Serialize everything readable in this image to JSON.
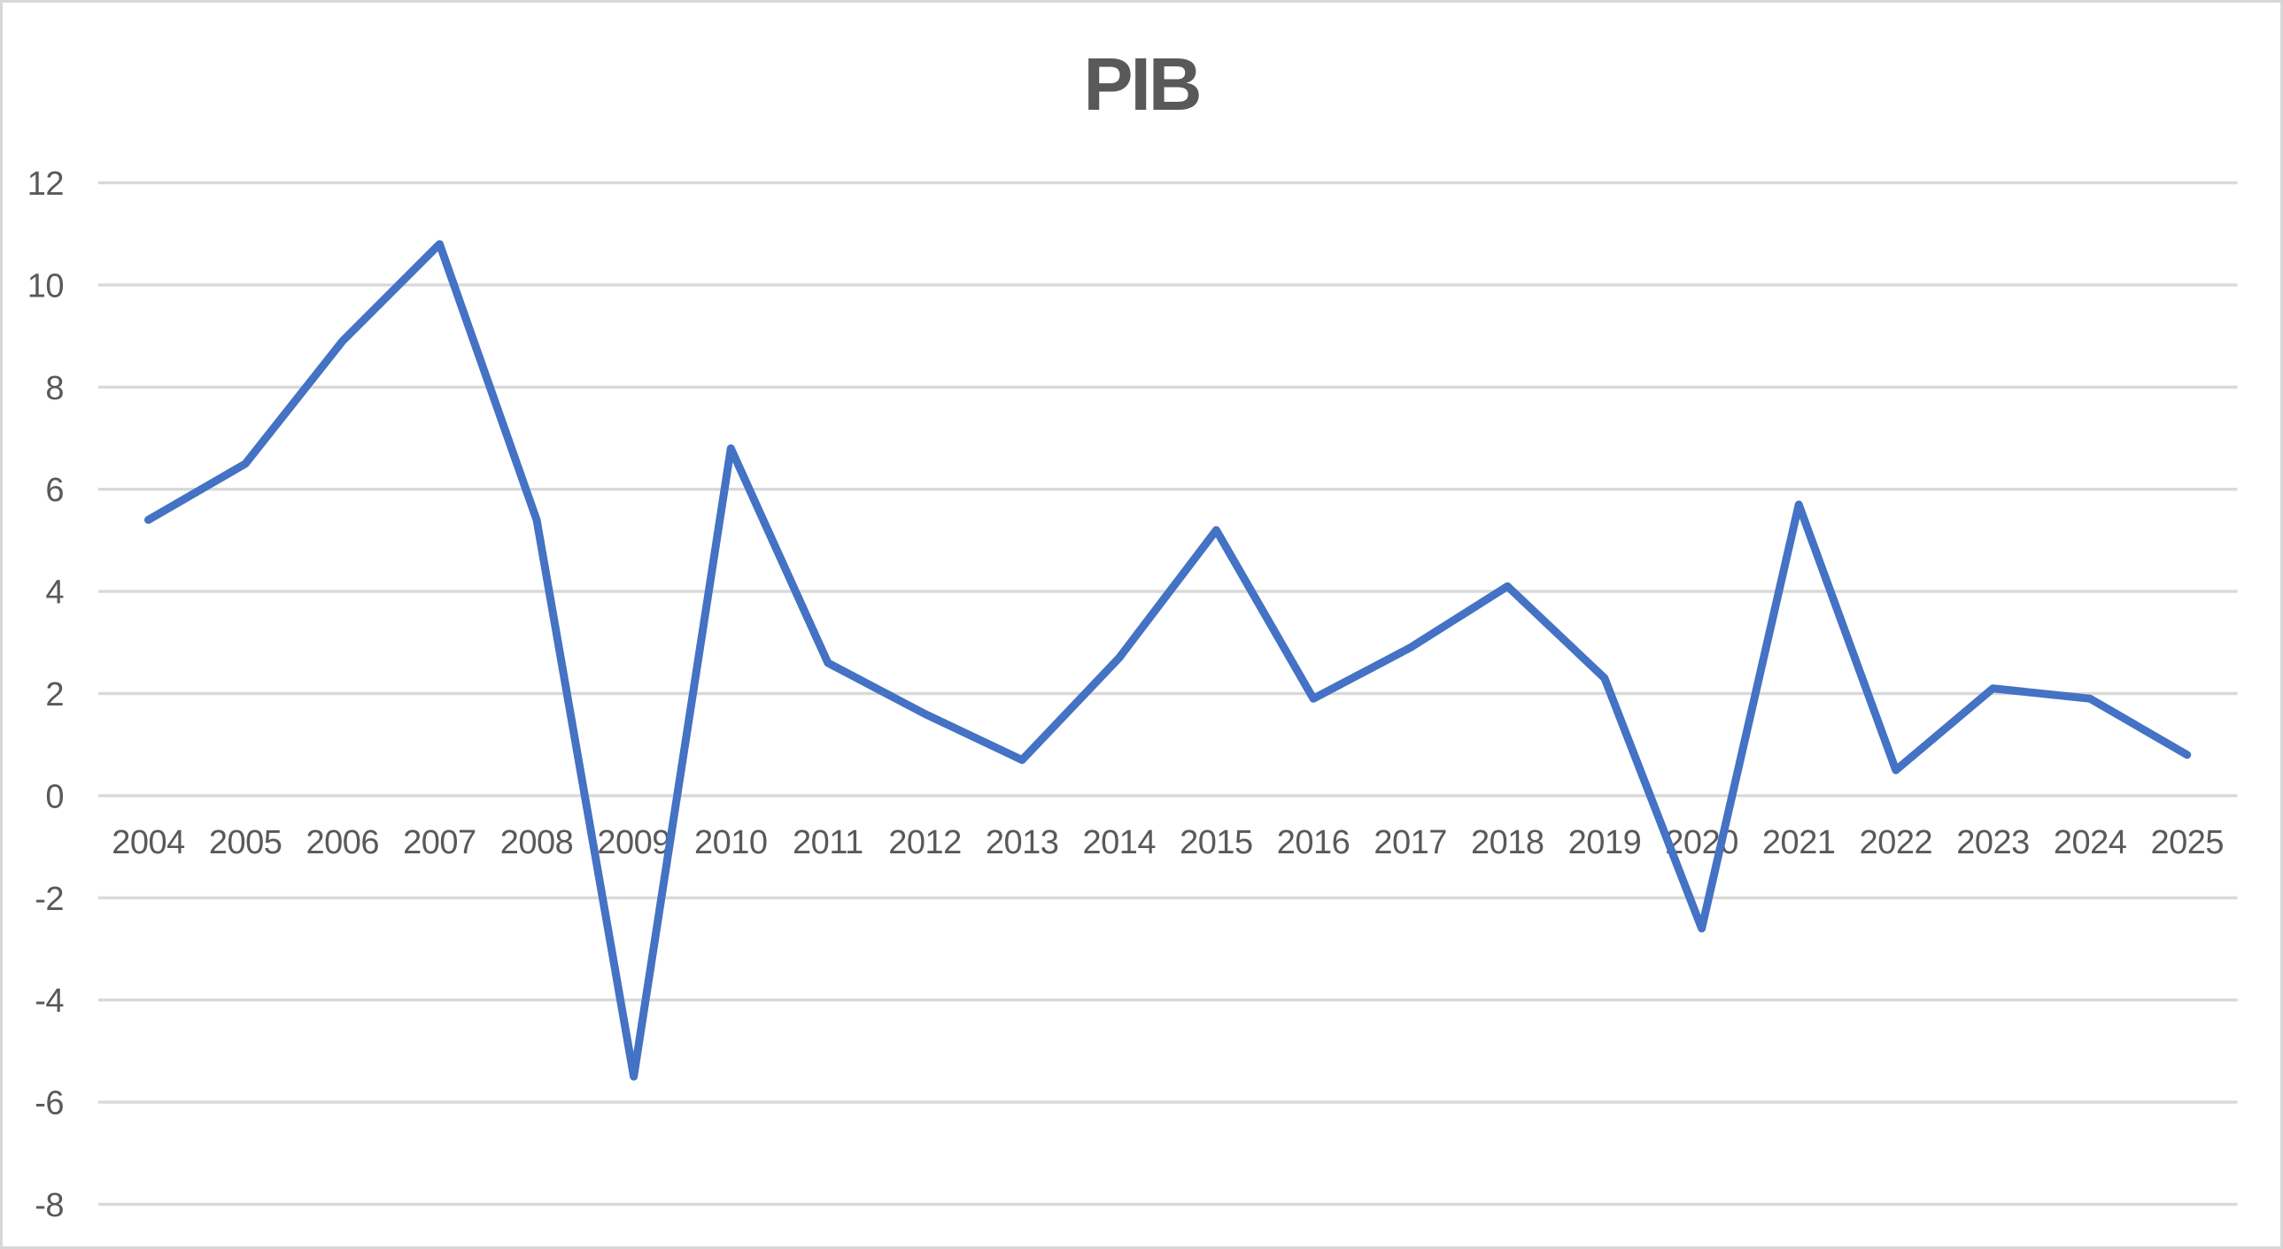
{
  "chart_data": {
    "type": "line",
    "title": "PIB",
    "categories": [
      2004,
      2005,
      2006,
      2007,
      2008,
      2009,
      2010,
      2011,
      2012,
      2013,
      2014,
      2015,
      2016,
      2017,
      2018,
      2019,
      2020,
      2021,
      2022,
      2023,
      2024,
      2025
    ],
    "series": [
      {
        "name": "PIB",
        "values": [
          5.4,
          6.5,
          8.9,
          10.8,
          5.4,
          -5.5,
          6.8,
          2.6,
          1.6,
          0.7,
          2.7,
          5.2,
          1.9,
          2.9,
          4.1,
          2.3,
          -2.6,
          5.7,
          0.5,
          2.1,
          1.9,
          0.8
        ]
      }
    ],
    "xlabel": "",
    "ylabel": "",
    "ylim": [
      -8,
      12
    ],
    "yticks": [
      12,
      10,
      8,
      6,
      4,
      2,
      0,
      -2,
      -4,
      -6,
      -8
    ],
    "grid": true,
    "legend_position": "none",
    "line_color": "#4472C4",
    "gridline_color": "#D9D9D9",
    "axis_label_color": "#595959",
    "title_color": "#595959",
    "background_color": "#FFFFFF",
    "border_color": "#D7D7D7"
  }
}
